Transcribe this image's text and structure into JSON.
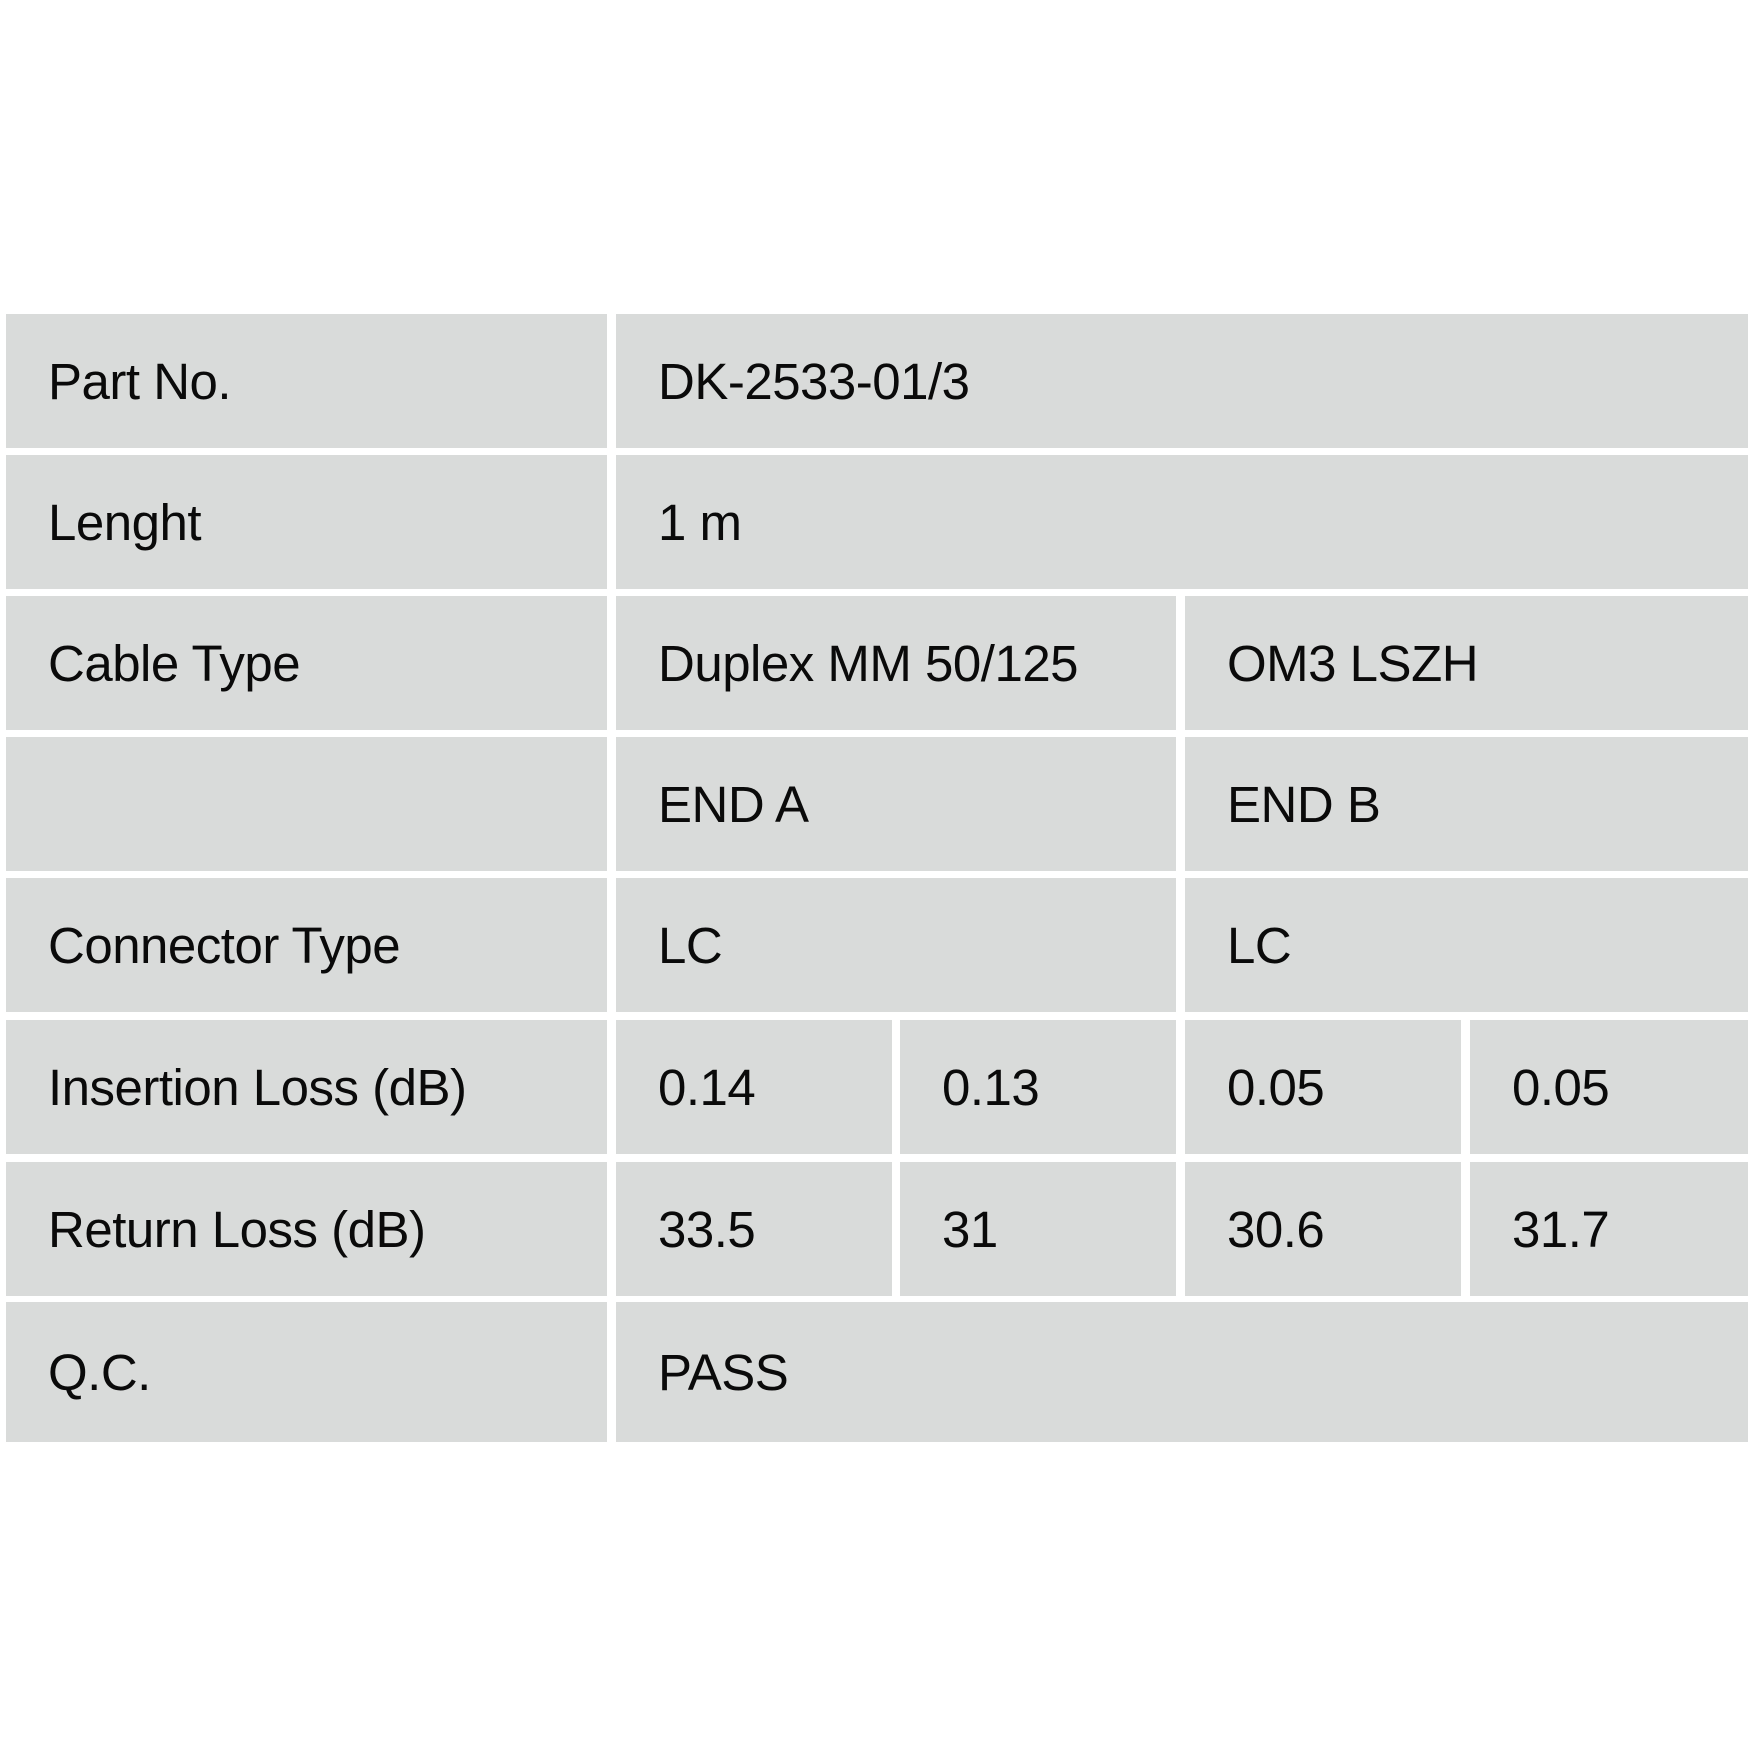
{
  "rows": {
    "part_no": {
      "label": "Part No.",
      "value": "DK-2533-01/3"
    },
    "length": {
      "label": "Lenght",
      "value": "1 m"
    },
    "cable_type": {
      "label": "Cable Type",
      "value_a": "Duplex MM 50/125",
      "value_b": "OM3 LSZH"
    },
    "ends": {
      "label": "",
      "end_a": "END A",
      "end_b": "END B"
    },
    "connector_type": {
      "label": "Connector Type",
      "end_a": "LC",
      "end_b": "LC"
    },
    "insertion_loss": {
      "label": "Insertion Loss (dB)",
      "values": [
        "0.14",
        "0.13",
        "0.05",
        "0.05"
      ]
    },
    "return_loss": {
      "label": "Return Loss (dB)",
      "values": [
        "33.5",
        "31",
        "30.6",
        "31.7"
      ]
    },
    "qc": {
      "label": "Q.C.",
      "value": "PASS"
    }
  },
  "colors": {
    "cell_background": "#d9dbda",
    "text": "#0a0a0a"
  }
}
